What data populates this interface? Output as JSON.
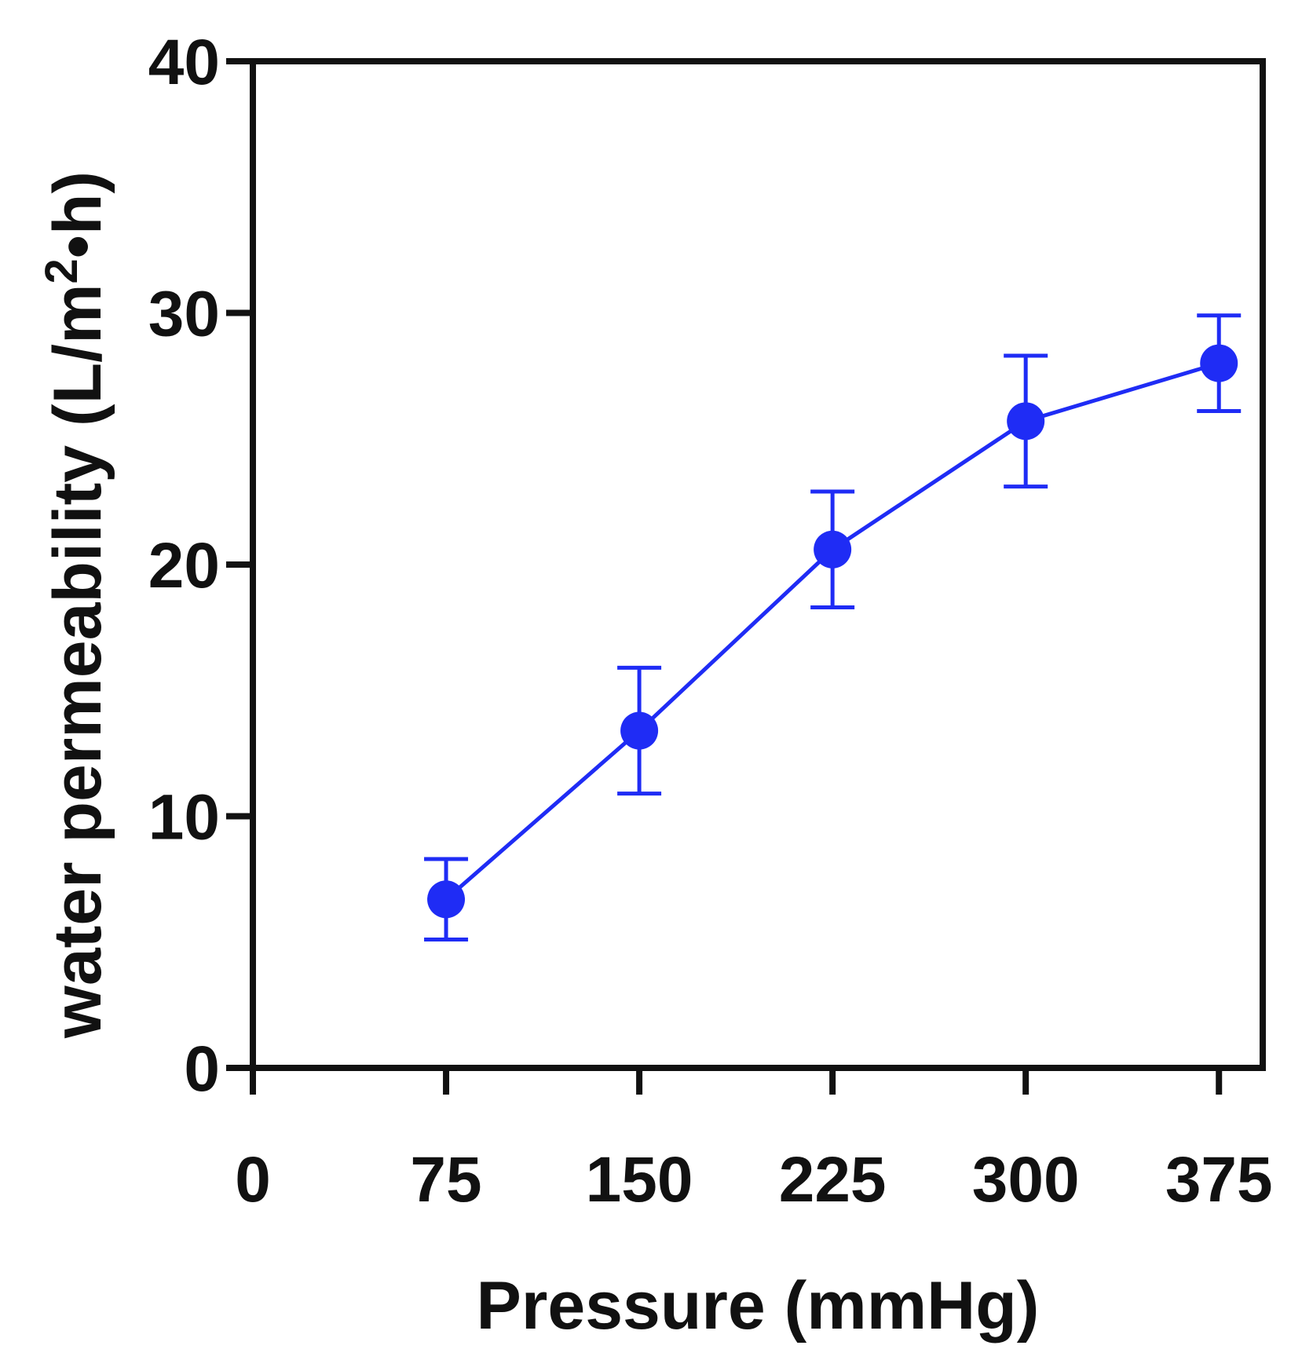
{
  "chart_data": {
    "type": "line",
    "title": "",
    "xlabel": "Pressure (mmHg)",
    "ylabel_main": "water permeability (L/m",
    "ylabel_sup": "2",
    "ylabel_tail": "•h)",
    "xlim": [
      0,
      392
    ],
    "ylim": [
      0,
      40
    ],
    "x_ticks": [
      0,
      75,
      150,
      225,
      300,
      375
    ],
    "y_ticks": [
      0,
      10,
      20,
      30,
      40
    ],
    "x_tick_labels": [
      "0",
      "75",
      "150",
      "225",
      "300",
      "375"
    ],
    "y_tick_labels": [
      "0",
      "10",
      "20",
      "30",
      "40"
    ],
    "grid": false,
    "series": [
      {
        "name": "water permeability",
        "color": "#1f2cf5",
        "x": [
          75,
          150,
          225,
          300,
          375
        ],
        "y": [
          6.7,
          13.4,
          20.6,
          25.7,
          28.0
        ],
        "err": [
          1.6,
          2.5,
          2.3,
          2.6,
          1.9
        ]
      }
    ]
  }
}
